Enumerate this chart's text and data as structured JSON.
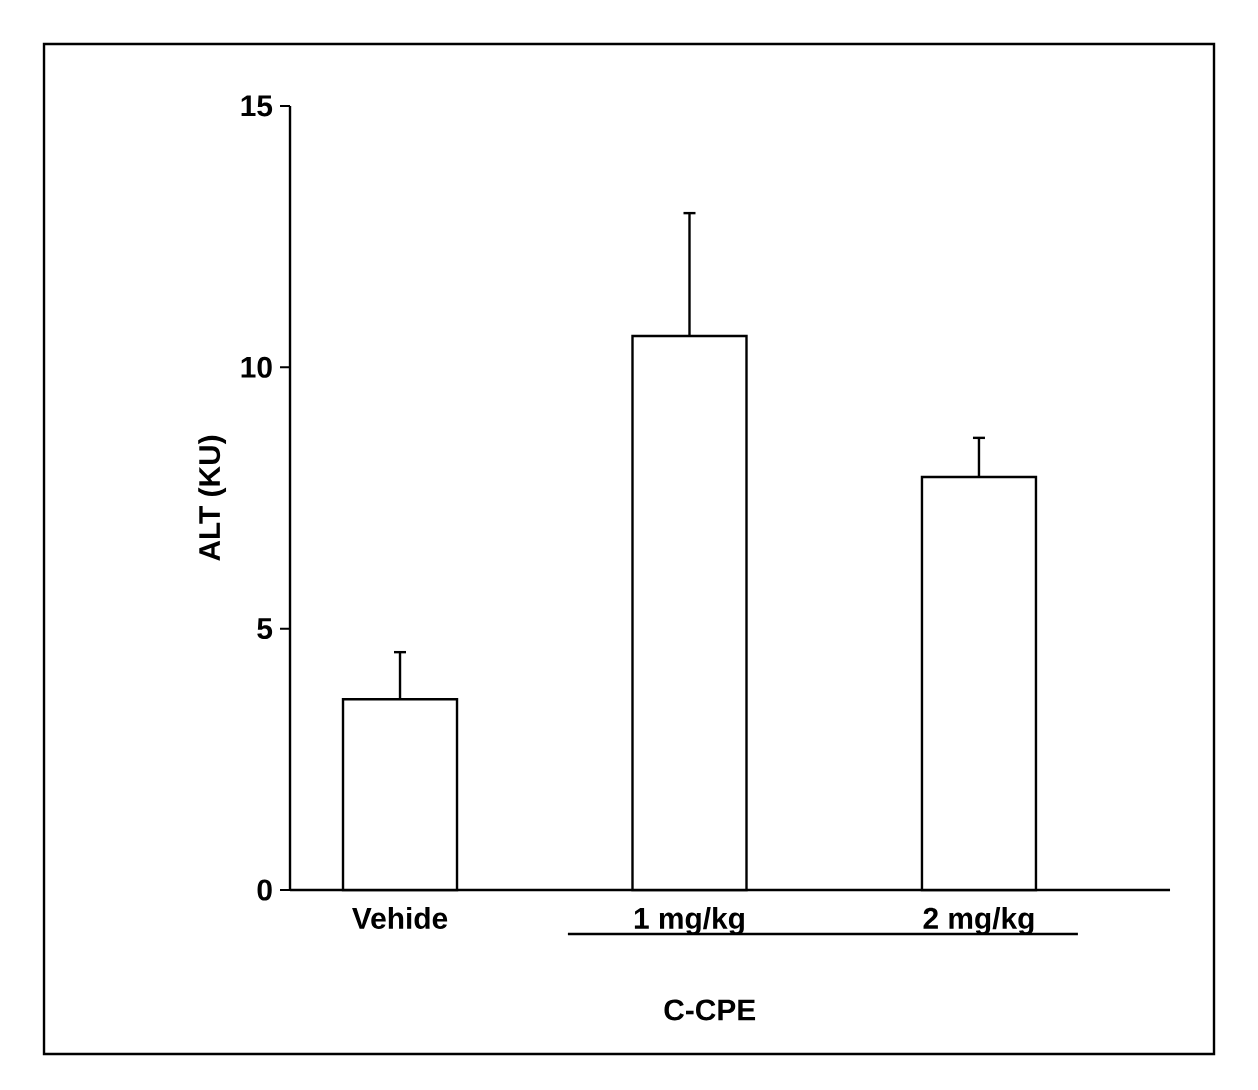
{
  "chart_data": {
    "type": "bar",
    "ylabel": "ALT (KU)",
    "categories": [
      "Vehide",
      "1 mg/kg",
      "2 mg/kg"
    ],
    "values": [
      3.65,
      10.6,
      7.9
    ],
    "errors": [
      [
        3.65,
        4.55
      ],
      [
        10.6,
        12.95
      ],
      [
        7.9,
        8.65
      ]
    ],
    "color": "#ffffff",
    "ylim": [
      0,
      15
    ],
    "yticks": [
      0,
      5,
      10,
      15
    ],
    "annotations": [
      "C-CPE"
    ]
  }
}
